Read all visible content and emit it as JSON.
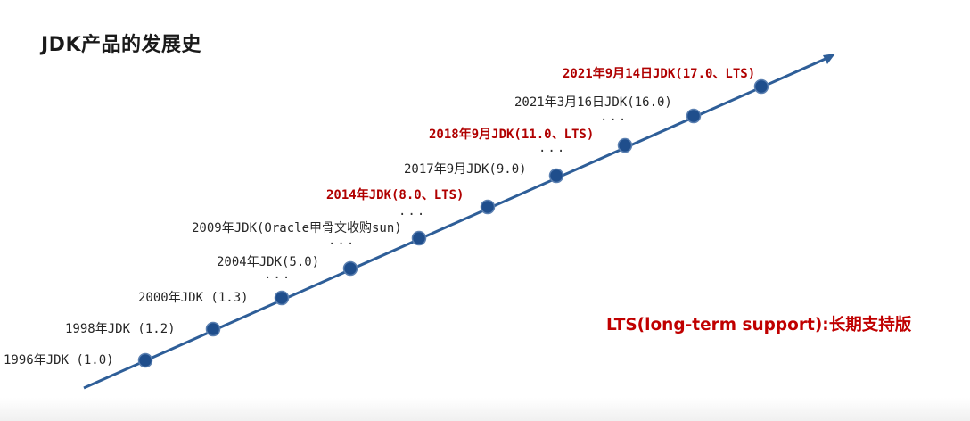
{
  "title": "JDK产品的发展史",
  "note": "LTS(long-term support):长期支持版",
  "colors": {
    "axis": "#2e5e98",
    "node_fill": "#1f4e8c",
    "node_stroke": "#5a7fb0",
    "lts_text": "#b00000",
    "normal_text": "#262626"
  },
  "events": [
    {
      "label": "1996年JDK (1.0)",
      "lts": false
    },
    {
      "label": "1998年JDK (1.2)",
      "lts": false
    },
    {
      "label": "2000年JDK (1.3)",
      "lts": false
    },
    {
      "label": "2004年JDK(5.0)",
      "lts": false
    },
    {
      "label": "2009年JDK(Oracle甲骨文收购sun)",
      "lts": false
    },
    {
      "label": "2014年JDK(8.0、LTS)",
      "lts": true
    },
    {
      "label": "2017年9月JDK(9.0)",
      "lts": false
    },
    {
      "label": "2018年9月JDK(11.0、LTS)",
      "lts": true
    },
    {
      "label": "2021年3月16日JDK(16.0)",
      "lts": false
    },
    {
      "label": "2021年9月14日JDK(17.0、LTS)",
      "lts": true
    }
  ],
  "ellipsis": "..."
}
